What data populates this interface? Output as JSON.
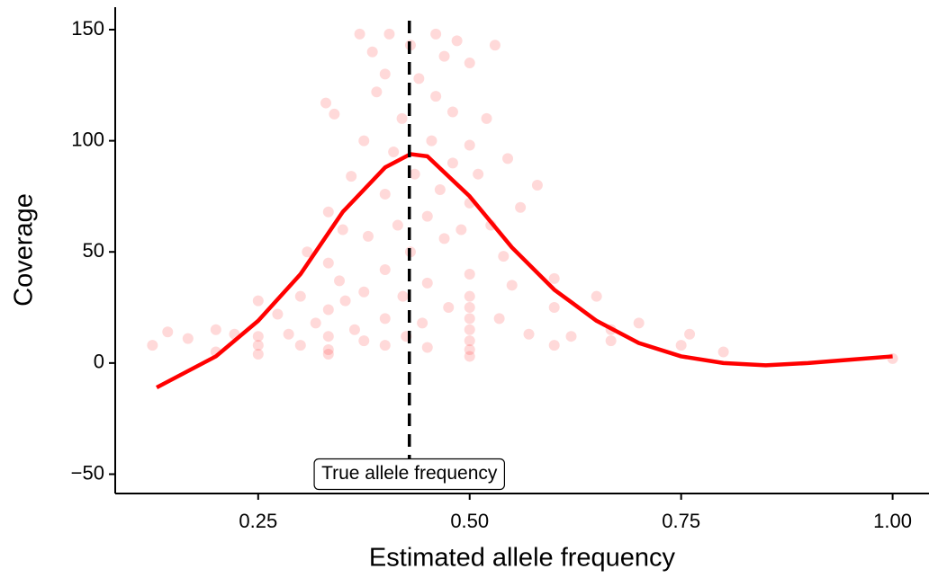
{
  "chart_data": {
    "type": "scatter",
    "x_label": "Estimated allele frequency",
    "y_label": "Coverage",
    "xlim": [
      0.081,
      1.043
    ],
    "ylim": [
      -58.7,
      160.1
    ],
    "xticks": [
      0.25,
      {
        "value": 0.5,
        "label": "0.50"
      },
      0.75,
      {
        "value": 1,
        "label": "1.00"
      }
    ],
    "yticks": [
      {
        "value": -50,
        "label": "−50"
      },
      0,
      50,
      100,
      150
    ],
    "point_color": "#ff0000",
    "line_color": "#ff0000",
    "x": [
      0.125,
      0.143,
      0.167,
      0.2,
      0.2,
      0.222,
      0.25,
      0.25,
      0.25,
      0.25,
      0.273,
      0.286,
      0.3,
      0.3,
      0.308,
      0.318,
      0.333,
      0.333,
      0.333,
      0.333,
      0.333,
      0.333,
      0.33,
      0.34,
      0.346,
      0.35,
      0.353,
      0.36,
      0.364,
      0.37,
      0.375,
      0.375,
      0.375,
      0.38,
      0.385,
      0.39,
      0.4,
      0.4,
      0.4,
      0.4,
      0.4,
      0.405,
      0.41,
      0.415,
      0.42,
      0.421,
      0.425,
      0.43,
      0.43,
      0.435,
      0.44,
      0.444,
      0.45,
      0.45,
      0.45,
      0.455,
      0.46,
      0.46,
      0.465,
      0.47,
      0.47,
      0.475,
      0.48,
      0.48,
      0.485,
      0.49,
      0.5,
      0.5,
      0.5,
      0.5,
      0.5,
      0.5,
      0.5,
      0.5,
      0.5,
      0.5,
      0.5,
      0.51,
      0.52,
      0.525,
      0.53,
      0.535,
      0.54,
      0.545,
      0.55,
      0.56,
      0.57,
      0.58,
      0.6,
      0.6,
      0.6,
      0.62,
      0.65,
      0.667,
      0.667,
      0.7,
      0.75,
      0.76,
      0.8,
      1.0
    ],
    "y": [
      8,
      14,
      11,
      15,
      5,
      13,
      4,
      8,
      12,
      28,
      22,
      13,
      8,
      30,
      50,
      18,
      4,
      6,
      12,
      24,
      45,
      68,
      117,
      112,
      37,
      60,
      28,
      84,
      15,
      148,
      10,
      32,
      100,
      57,
      140,
      122,
      8,
      20,
      42,
      76,
      130,
      148,
      95,
      62,
      110,
      30,
      12,
      143,
      50,
      85,
      128,
      18,
      7,
      36,
      66,
      100,
      148,
      120,
      78,
      56,
      138,
      25,
      90,
      113,
      145,
      60,
      3,
      6,
      10,
      15,
      20,
      25,
      30,
      40,
      72,
      98,
      135,
      85,
      110,
      62,
      143,
      20,
      48,
      92,
      35,
      70,
      13,
      80,
      8,
      25,
      38,
      12,
      30,
      10,
      15,
      18,
      8,
      13,
      5,
      2
    ],
    "smooth": {
      "x": [
        0.13,
        0.2,
        0.25,
        0.3,
        0.35,
        0.4,
        0.43,
        0.45,
        0.5,
        0.55,
        0.6,
        0.65,
        0.7,
        0.75,
        0.8,
        0.85,
        0.9,
        0.95,
        1.0
      ],
      "y": [
        -11,
        3,
        19,
        40,
        68,
        88,
        94,
        93,
        75,
        52,
        33,
        19,
        9,
        3,
        0,
        -1,
        0,
        1.5,
        3
      ]
    },
    "vline": {
      "x": 0.4287,
      "label": "True allele frequency",
      "label_y": -50
    }
  }
}
